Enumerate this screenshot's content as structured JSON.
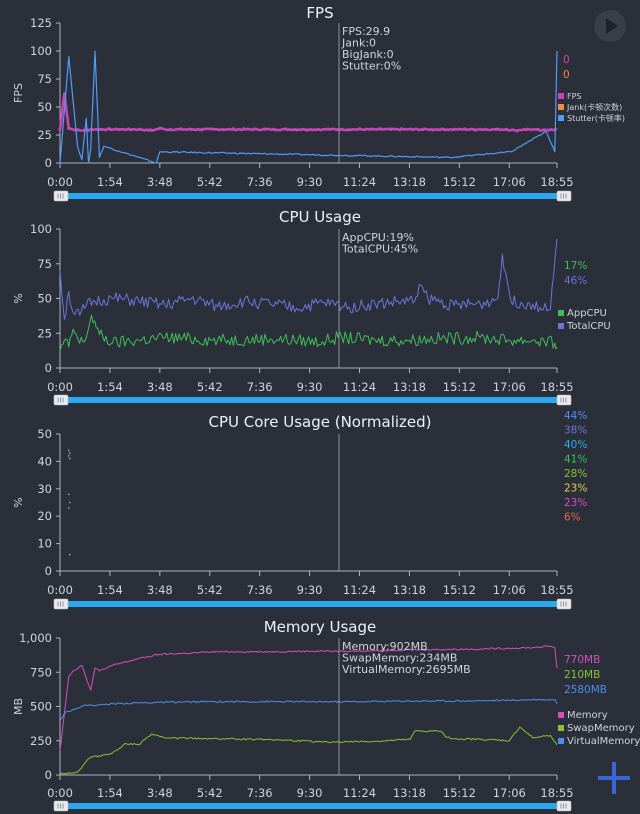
{
  "colors": {
    "bg": "#2b2f3a",
    "axis": "#aeb3bd",
    "fps": "#c944b8",
    "jank": "#f08a3c",
    "stutter": "#4e9cf5",
    "appcpu": "#3fbf56",
    "totalcpu": "#6f73d9",
    "memory": "#d24fc0",
    "swap": "#86c232",
    "virtual": "#4b8ef0",
    "slider": "#29a8f0",
    "cursor": "#8e939e"
  },
  "x_ticks": [
    "0:00",
    "1:54",
    "3:48",
    "5:42",
    "7:36",
    "9:30",
    "11:24",
    "13:18",
    "15:12",
    "17:06",
    "18:55"
  ],
  "play_button": {
    "icon": "play-icon"
  },
  "add_button": {
    "icon": "plus-icon"
  },
  "chart_data": [
    {
      "type": "line",
      "title": "FPS",
      "ylabel": "FPS",
      "ylim": [
        0,
        125
      ],
      "y_ticks": [
        "0",
        "25",
        "50",
        "75",
        "100",
        "125"
      ],
      "cursor_time": "10:35",
      "tooltip": [
        "FPS:29.9",
        "Jank:0",
        "BigJank:0",
        "Stutter:0%"
      ],
      "current_values": [
        {
          "text": "0",
          "color": "#c944b8"
        },
        {
          "text": "0",
          "color": "#f08a3c"
        }
      ],
      "legend": [
        {
          "name": "FPS",
          "color": "#c944b8"
        },
        {
          "name": "Jank(卡顿次数)",
          "color": "#f08a3c"
        },
        {
          "name": "Stutter(卡顿率)",
          "color": "#4e9cf5"
        }
      ],
      "series": [
        {
          "name": "FPS",
          "x": [
            "0:00",
            "0:10",
            "0:20",
            "0:30",
            "0:50",
            "1:10",
            "1:30",
            "2:00",
            "3:00",
            "3:30",
            "3:48",
            "4:00",
            "6:00",
            "8:00",
            "10:00",
            "12:00",
            "14:00",
            "15:00",
            "16:00",
            "17:00",
            "17:20",
            "17:40",
            "18:00",
            "18:20",
            "18:40",
            "18:55"
          ],
          "values": [
            30,
            62,
            31,
            30,
            29,
            30,
            30,
            30,
            30,
            29,
            31,
            30,
            30,
            30,
            30,
            30,
            30,
            30,
            30,
            30,
            29,
            30,
            30,
            29,
            30,
            30
          ]
        },
        {
          "name": "Stutter(卡顿率)",
          "x": [
            "0:00",
            "0:20",
            "0:40",
            "0:50",
            "1:00",
            "1:05",
            "1:10",
            "1:20",
            "1:30",
            "1:40",
            "3:40",
            "3:48",
            "14:50",
            "17:10",
            "18:30",
            "18:50",
            "18:55"
          ],
          "values": [
            0,
            95,
            15,
            3,
            40,
            0,
            12,
            100,
            5,
            15,
            0,
            10,
            5,
            10,
            28,
            10,
            100
          ]
        }
      ]
    },
    {
      "type": "line",
      "title": "CPU Usage",
      "ylabel": "%",
      "ylim": [
        0,
        100
      ],
      "y_ticks": [
        "0",
        "25",
        "50",
        "75",
        "100"
      ],
      "cursor_time": "10:35",
      "tooltip": [
        "AppCPU:19%",
        "TotalCPU:45%"
      ],
      "current_values": [
        {
          "text": "17%",
          "color": "#3fbf56"
        },
        {
          "text": "46%",
          "color": "#6f73d9"
        }
      ],
      "legend": [
        {
          "name": "AppCPU",
          "color": "#3fbf56"
        },
        {
          "name": "TotalCPU",
          "color": "#6f73d9"
        }
      ],
      "series": [
        {
          "name": "AppCPU",
          "x": [
            "0:00",
            "0:10",
            "0:20",
            "0:30",
            "0:45",
            "1:00",
            "1:12",
            "1:30",
            "2:00",
            "3:00",
            "4:00",
            "6:00",
            "8:00",
            "10:00",
            "10:35",
            "12:00",
            "13:18",
            "14:00",
            "16:00",
            "17:06",
            "18:00",
            "18:50",
            "18:55"
          ],
          "values": [
            12,
            20,
            15,
            28,
            18,
            22,
            38,
            24,
            18,
            20,
            22,
            20,
            21,
            19,
            22,
            20,
            20,
            21,
            22,
            20,
            20,
            18,
            15
          ]
        },
        {
          "name": "TotalCPU",
          "x": [
            "0:00",
            "0:10",
            "0:20",
            "0:30",
            "0:45",
            "1:00",
            "1:20",
            "2:00",
            "3:00",
            "4:00",
            "5:00",
            "6:00",
            "7:00",
            "8:00",
            "9:00",
            "10:00",
            "11:00",
            "12:00",
            "13:00",
            "13:30",
            "13:40",
            "14:00",
            "15:00",
            "16:00",
            "16:40",
            "16:50",
            "17:10",
            "18:00",
            "18:40",
            "18:55"
          ],
          "values": [
            70,
            35,
            55,
            40,
            38,
            45,
            48,
            50,
            48,
            45,
            50,
            44,
            48,
            46,
            43,
            47,
            44,
            46,
            48,
            48,
            60,
            50,
            45,
            46,
            50,
            82,
            48,
            46,
            42,
            93
          ]
        }
      ]
    },
    {
      "type": "scatter",
      "title": "CPU Core Usage (Normalized)",
      "ylabel": "%",
      "ylim": [
        0,
        50
      ],
      "y_ticks": [
        "0",
        "10",
        "20",
        "30",
        "40",
        "50"
      ],
      "cursor_time": "10:35",
      "current_values": [
        {
          "text": "44%",
          "color": "#4b8ef0"
        },
        {
          "text": "38%",
          "color": "#6f73d9"
        },
        {
          "text": "40%",
          "color": "#29a8f0"
        },
        {
          "text": "41%",
          "color": "#3fbf56"
        },
        {
          "text": "28%",
          "color": "#86c232"
        },
        {
          "text": "23%",
          "color": "#d8d04a"
        },
        {
          "text": "23%",
          "color": "#d24fc0"
        },
        {
          "text": "6%",
          "color": "#e06a4a"
        }
      ],
      "series": [
        {
          "name": "",
          "x": [
            "0:20",
            "0:20",
            "0:20",
            "0:20",
            "0:20",
            "0:20",
            "0:20",
            "0:20"
          ],
          "values": [
            44,
            43,
            42,
            41,
            28,
            25,
            23,
            6
          ]
        }
      ]
    },
    {
      "type": "line",
      "title": "Memory Usage",
      "ylabel": "MB",
      "ylim": [
        0,
        1000
      ],
      "y_ticks": [
        "0",
        "250",
        "500",
        "750",
        "1,000"
      ],
      "cursor_time": "10:35",
      "tooltip": [
        "Memory:902MB",
        "SwapMemory:234MB",
        "VirtualMemory:2695MB"
      ],
      "current_values": [
        {
          "text": "770MB",
          "color": "#d24fc0"
        },
        {
          "text": "210MB",
          "color": "#86c232"
        },
        {
          "text": "2580MB",
          "color": "#4b8ef0"
        }
      ],
      "legend": [
        {
          "name": "Memory",
          "color": "#d24fc0"
        },
        {
          "name": "SwapMemory",
          "color": "#86c232"
        },
        {
          "name": "VirtualMemory",
          "color": "#4b8ef0"
        }
      ],
      "series": [
        {
          "name": "Memory",
          "x": [
            "0:00",
            "0:10",
            "0:20",
            "0:30",
            "0:50",
            "1:10",
            "1:20",
            "1:30",
            "2:00",
            "3:00",
            "3:48",
            "5:00",
            "6:00",
            "8:00",
            "10:00",
            "11:00",
            "12:00",
            "14:00",
            "16:00",
            "17:06",
            "18:00",
            "18:40",
            "18:50",
            "18:55"
          ],
          "values": [
            180,
            450,
            720,
            760,
            800,
            620,
            780,
            760,
            800,
            850,
            880,
            890,
            900,
            900,
            905,
            902,
            910,
            915,
            920,
            925,
            930,
            940,
            930,
            780
          ]
        },
        {
          "name": "SwapMemory",
          "x": [
            "0:00",
            "0:40",
            "1:00",
            "1:10",
            "1:30",
            "2:00",
            "2:30",
            "3:00",
            "3:30",
            "3:40",
            "3:48",
            "4:00",
            "6:00",
            "8:00",
            "10:00",
            "12:00",
            "13:20",
            "13:30",
            "14:30",
            "14:40",
            "15:00",
            "16:00",
            "17:06",
            "17:30",
            "18:00",
            "18:40",
            "18:55"
          ],
          "values": [
            10,
            20,
            100,
            130,
            140,
            160,
            230,
            220,
            300,
            290,
            280,
            270,
            265,
            260,
            240,
            245,
            260,
            320,
            320,
            280,
            265,
            260,
            250,
            350,
            270,
            290,
            220
          ]
        },
        {
          "name": "VirtualMemory",
          "x": [
            "0:00",
            "0:10",
            "0:30",
            "1:00",
            "1:30",
            "2:00",
            "3:48",
            "5:42",
            "7:36",
            "9:30",
            "11:24",
            "13:18",
            "15:12",
            "17:06",
            "18:00",
            "18:50",
            "18:55"
          ],
          "values": [
            400,
            450,
            480,
            510,
            510,
            520,
            530,
            535,
            535,
            535,
            535,
            540,
            540,
            545,
            550,
            550,
            520
          ]
        }
      ]
    }
  ]
}
